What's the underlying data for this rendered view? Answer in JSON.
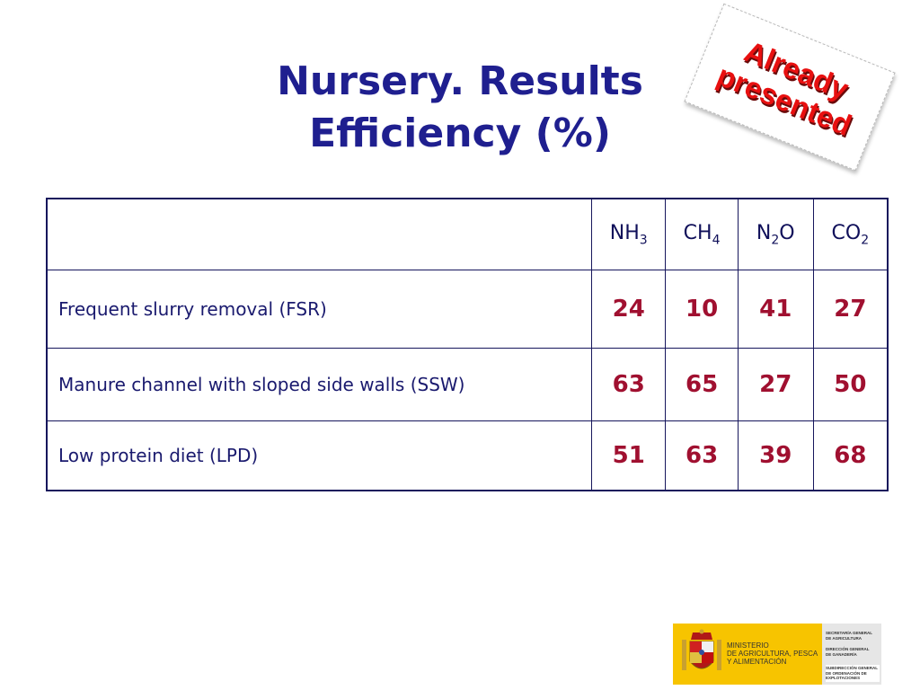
{
  "title": {
    "line1": "Nursery. Results",
    "line2": "Efficiency (%)"
  },
  "stamp": {
    "line1": "Already",
    "line2": "presented",
    "color": "#e81010"
  },
  "table": {
    "columns": [
      {
        "base": "NH",
        "sub": "3"
      },
      {
        "base": "CH",
        "sub": "4"
      },
      {
        "base": "N",
        "sub": "2",
        "tail": "O"
      },
      {
        "base": "CO",
        "sub": "2"
      }
    ],
    "rows": [
      {
        "label": "Frequent slurry removal (FSR)",
        "values": [
          "24",
          "10",
          "41",
          "27"
        ]
      },
      {
        "label": "Manure channel with sloped side walls (SSW)",
        "values": [
          "63",
          "65",
          "27",
          "50"
        ]
      },
      {
        "label": "Low protein diet (LPD)",
        "values": [
          "51",
          "63",
          "39",
          "68"
        ]
      }
    ],
    "value_color": "#a01030",
    "border_color": "#16165c"
  },
  "logo": {
    "ministry": [
      "MINISTERIO",
      "DE AGRICULTURA, PESCA",
      "Y ALIMENTACIÓN"
    ],
    "dept1": [
      "SECRETARÍA GENERAL",
      "DE AGRICULTURA"
    ],
    "dept2": [
      "DIRECCIÓN GENERAL",
      "DE GANADERÍA"
    ],
    "dept3": [
      "SUBDIRECCIÓN GENERAL",
      "DE ORDENACIÓN DE",
      "EXPLOTACIONES"
    ]
  }
}
